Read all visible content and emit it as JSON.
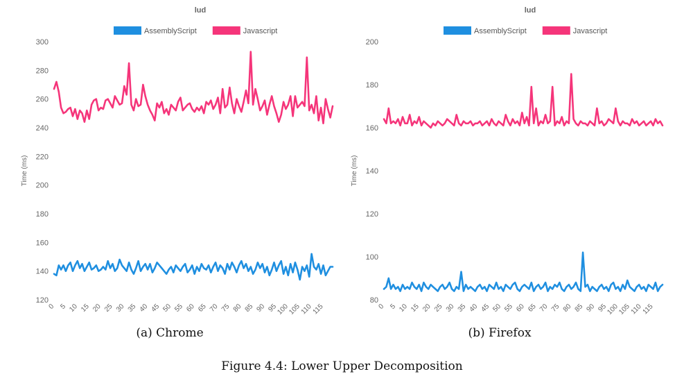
{
  "colors": {
    "assemblyscript": "#1f8fe0",
    "javascript": "#f5357a",
    "text": "#666666"
  },
  "captions": {
    "a": "(a) Chrome",
    "b": "(b) Firefox",
    "figure": "Figure 4.4: Lower Upper Decomposition"
  },
  "chart_data": [
    {
      "type": "line",
      "title": "lud",
      "xlabel": "",
      "ylabel": "Time (ms)",
      "ylim": [
        120,
        300
      ],
      "yticks": [
        120,
        140,
        160,
        180,
        200,
        220,
        240,
        260,
        280,
        300
      ],
      "x": [
        0,
        1,
        2,
        3,
        4,
        5,
        6,
        7,
        8,
        9,
        10,
        11,
        12,
        13,
        14,
        15,
        16,
        17,
        18,
        19,
        20,
        21,
        22,
        23,
        24,
        25,
        26,
        27,
        28,
        29,
        30,
        31,
        32,
        33,
        34,
        35,
        36,
        37,
        38,
        39,
        40,
        41,
        42,
        43,
        44,
        45,
        46,
        47,
        48,
        49,
        50,
        51,
        52,
        53,
        54,
        55,
        56,
        57,
        58,
        59,
        60,
        61,
        62,
        63,
        64,
        65,
        66,
        67,
        68,
        69,
        70,
        71,
        72,
        73,
        74,
        75,
        76,
        77,
        78,
        79,
        80,
        81,
        82,
        83,
        84,
        85,
        86,
        87,
        88,
        89,
        90,
        91,
        92,
        93,
        94,
        95,
        96,
        97,
        98,
        99,
        100,
        101,
        102,
        103,
        104,
        105,
        106,
        107,
        108,
        109,
        110,
        111,
        112,
        113,
        114,
        115,
        116,
        117,
        118,
        119
      ],
      "xticks": [
        "0",
        "5",
        "10",
        "15",
        "20",
        "25",
        "30",
        "35",
        "40",
        "45",
        "50",
        "55",
        "60",
        "65",
        "70",
        "75",
        "80",
        "85",
        "90",
        "95",
        "100",
        "105",
        "110",
        "115"
      ],
      "legend": "top-center",
      "grid": false,
      "series": [
        {
          "name": "AssemblyScript",
          "color": "#1f8fe0",
          "values": [
            138,
            137,
            144,
            141,
            144,
            140,
            144,
            146,
            140,
            144,
            147,
            142,
            145,
            140,
            143,
            146,
            141,
            142,
            144,
            140,
            141,
            143,
            141,
            147,
            142,
            145,
            140,
            142,
            148,
            144,
            142,
            140,
            146,
            141,
            138,
            142,
            147,
            140,
            143,
            145,
            141,
            145,
            139,
            142,
            146,
            144,
            142,
            140,
            138,
            141,
            143,
            139,
            144,
            142,
            140,
            143,
            145,
            139,
            141,
            144,
            138,
            143,
            140,
            145,
            142,
            141,
            144,
            139,
            143,
            146,
            140,
            144,
            142,
            138,
            145,
            141,
            146,
            143,
            139,
            144,
            147,
            142,
            145,
            140,
            143,
            138,
            141,
            146,
            142,
            145,
            139,
            143,
            137,
            141,
            146,
            140,
            144,
            147,
            138,
            143,
            137,
            145,
            139,
            146,
            141,
            134,
            143,
            140,
            144,
            136,
            152,
            143,
            141,
            145,
            138,
            144,
            137,
            140,
            143,
            143
          ]
        },
        {
          "name": "Javascript",
          "color": "#f5357a",
          "values": [
            267,
            272,
            265,
            254,
            250,
            251,
            253,
            254,
            248,
            253,
            246,
            252,
            250,
            244,
            252,
            246,
            256,
            259,
            260,
            252,
            254,
            253,
            259,
            260,
            257,
            254,
            262,
            259,
            256,
            257,
            269,
            263,
            285,
            256,
            252,
            260,
            255,
            256,
            270,
            262,
            256,
            252,
            249,
            245,
            257,
            254,
            258,
            250,
            253,
            249,
            256,
            254,
            252,
            258,
            261,
            252,
            254,
            256,
            257,
            253,
            251,
            254,
            252,
            255,
            250,
            258,
            256,
            259,
            253,
            256,
            261,
            250,
            267,
            254,
            256,
            268,
            257,
            250,
            260,
            255,
            251,
            258,
            266,
            257,
            293,
            256,
            267,
            260,
            252,
            255,
            259,
            249,
            256,
            262,
            255,
            250,
            244,
            249,
            258,
            253,
            256,
            262,
            248,
            262,
            254,
            256,
            258,
            255,
            289,
            252,
            256,
            250,
            262,
            245,
            254,
            243,
            260,
            253,
            247,
            255
          ]
        }
      ]
    },
    {
      "type": "line",
      "title": "lud",
      "xlabel": "",
      "ylabel": "Time (ms)",
      "ylim": [
        80,
        200
      ],
      "yticks": [
        80,
        100,
        120,
        140,
        160,
        180,
        200
      ],
      "x": [
        0,
        1,
        2,
        3,
        4,
        5,
        6,
        7,
        8,
        9,
        10,
        11,
        12,
        13,
        14,
        15,
        16,
        17,
        18,
        19,
        20,
        21,
        22,
        23,
        24,
        25,
        26,
        27,
        28,
        29,
        30,
        31,
        32,
        33,
        34,
        35,
        36,
        37,
        38,
        39,
        40,
        41,
        42,
        43,
        44,
        45,
        46,
        47,
        48,
        49,
        50,
        51,
        52,
        53,
        54,
        55,
        56,
        57,
        58,
        59,
        60,
        61,
        62,
        63,
        64,
        65,
        66,
        67,
        68,
        69,
        70,
        71,
        72,
        73,
        74,
        75,
        76,
        77,
        78,
        79,
        80,
        81,
        82,
        83,
        84,
        85,
        86,
        87,
        88,
        89,
        90,
        91,
        92,
        93,
        94,
        95,
        96,
        97,
        98,
        99,
        100,
        101,
        102,
        103,
        104,
        105,
        106,
        107,
        108,
        109,
        110,
        111,
        112,
        113,
        114,
        115,
        116,
        117,
        118,
        119
      ],
      "xticks": [
        "0",
        "5",
        "10",
        "15",
        "20",
        "25",
        "30",
        "35",
        "40",
        "45",
        "50",
        "55",
        "60",
        "65",
        "70",
        "75",
        "80",
        "85",
        "90",
        "95",
        "100",
        "105",
        "110",
        "115"
      ],
      "legend": "top-center",
      "grid": false,
      "series": [
        {
          "name": "AssemblyScript",
          "color": "#1f8fe0",
          "values": [
            85,
            86,
            90,
            85,
            87,
            85,
            86,
            84,
            87,
            85,
            86,
            85,
            88,
            86,
            85,
            87,
            84,
            88,
            86,
            85,
            87,
            86,
            85,
            84,
            86,
            87,
            85,
            86,
            88,
            85,
            84,
            86,
            85,
            93,
            84,
            87,
            85,
            86,
            85,
            84,
            86,
            87,
            85,
            86,
            84,
            87,
            86,
            85,
            88,
            85,
            86,
            84,
            87,
            86,
            85,
            87,
            88,
            85,
            84,
            86,
            87,
            86,
            85,
            88,
            84,
            86,
            87,
            85,
            86,
            88,
            84,
            86,
            85,
            87,
            86,
            88,
            85,
            84,
            86,
            87,
            85,
            86,
            88,
            85,
            84,
            102,
            86,
            87,
            84,
            86,
            85,
            84,
            86,
            87,
            85,
            86,
            84,
            87,
            88,
            85,
            86,
            84,
            87,
            85,
            89,
            86,
            85,
            84,
            86,
            87,
            85,
            86,
            84,
            87,
            86,
            85,
            88,
            84,
            86,
            87
          ]
        },
        {
          "name": "Javascript",
          "color": "#f5357a",
          "values": [
            164,
            162,
            169,
            162,
            163,
            162,
            164,
            161,
            165,
            162,
            162,
            166,
            161,
            163,
            162,
            165,
            161,
            163,
            162,
            161,
            160,
            162,
            161,
            163,
            162,
            161,
            162,
            164,
            163,
            162,
            161,
            166,
            162,
            161,
            163,
            162,
            162,
            163,
            161,
            162,
            162,
            163,
            161,
            162,
            163,
            161,
            164,
            162,
            161,
            163,
            162,
            161,
            166,
            163,
            161,
            164,
            162,
            163,
            161,
            167,
            162,
            165,
            161,
            179,
            162,
            169,
            161,
            163,
            162,
            166,
            162,
            163,
            179,
            161,
            163,
            162,
            165,
            161,
            163,
            162,
            185,
            164,
            162,
            161,
            163,
            162,
            162,
            161,
            163,
            162,
            161,
            169,
            162,
            163,
            161,
            162,
            164,
            163,
            162,
            169,
            163,
            161,
            163,
            162,
            162,
            161,
            164,
            162,
            163,
            161,
            162,
            163,
            161,
            162,
            163,
            161,
            164,
            162,
            163,
            161
          ]
        }
      ]
    }
  ]
}
